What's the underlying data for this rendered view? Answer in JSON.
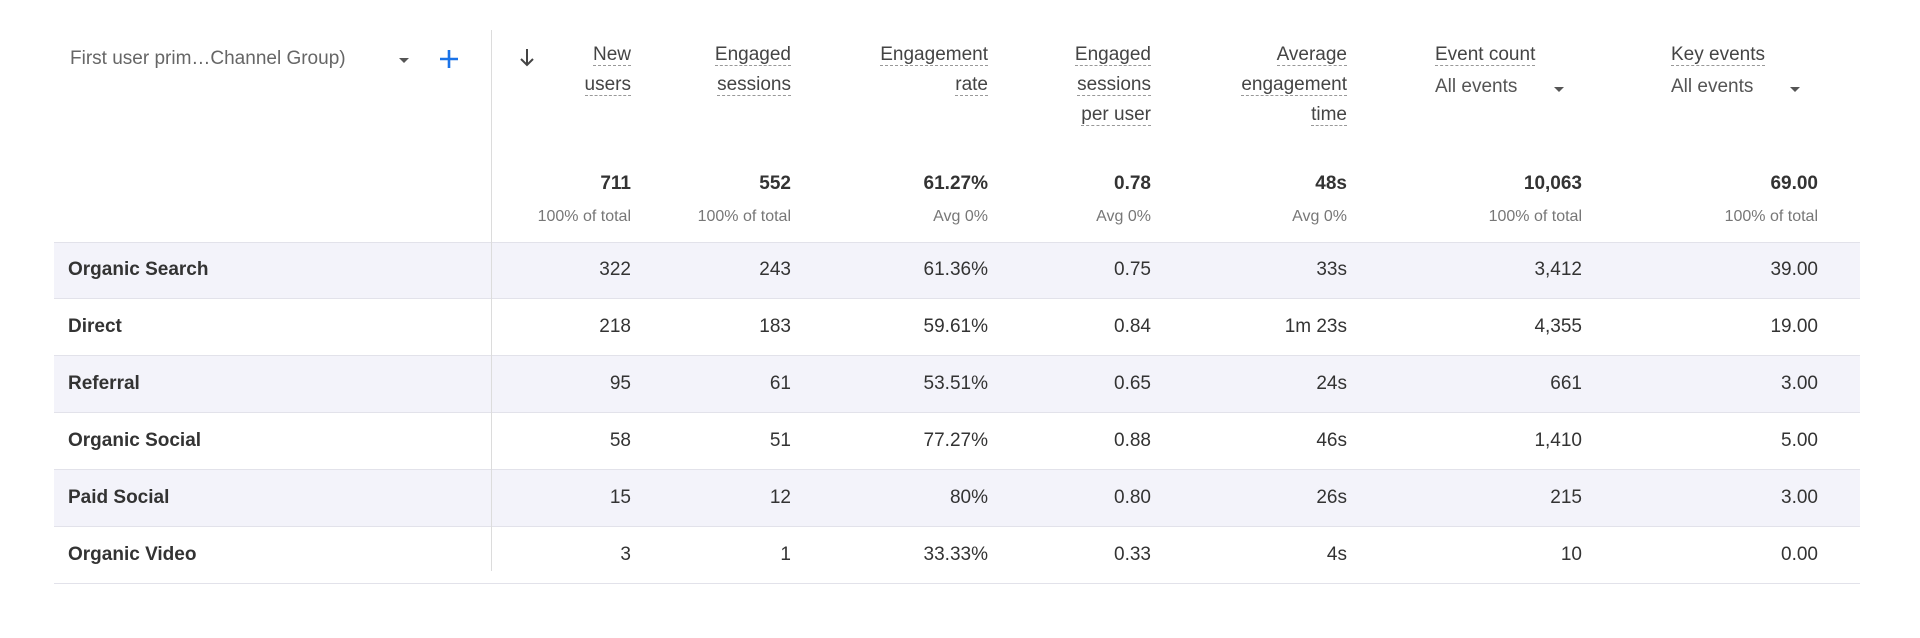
{
  "dimension": {
    "label": "First user prim…Channel Group)"
  },
  "columns": [
    {
      "label": [
        "New",
        "users"
      ],
      "total": "711",
      "total_note": "100% of total"
    },
    {
      "label": [
        "Engaged",
        "sessions"
      ],
      "total": "552",
      "total_note": "100% of total"
    },
    {
      "label": [
        "Engagement",
        "rate"
      ],
      "total": "61.27%",
      "total_note": "Avg 0%"
    },
    {
      "label": [
        "Engaged",
        "sessions",
        "per user"
      ],
      "total": "0.78",
      "total_note": "Avg 0%"
    },
    {
      "label": [
        "Average",
        "engagement",
        "time"
      ],
      "total": "48s",
      "total_note": "Avg 0%"
    },
    {
      "label": [
        "Event count"
      ],
      "filter": "All events",
      "total": "10,063",
      "total_note": "100% of total"
    },
    {
      "label": [
        "Key events"
      ],
      "filter": "All events",
      "total": "69.00",
      "total_note": "100% of total"
    }
  ],
  "rows": [
    {
      "label": "Organic Search",
      "cells": [
        "322",
        "243",
        "61.36%",
        "0.75",
        "33s",
        "3,412",
        "39.00"
      ]
    },
    {
      "label": "Direct",
      "cells": [
        "218",
        "183",
        "59.61%",
        "0.84",
        "1m 23s",
        "4,355",
        "19.00"
      ]
    },
    {
      "label": "Referral",
      "cells": [
        "95",
        "61",
        "53.51%",
        "0.65",
        "24s",
        "661",
        "3.00"
      ]
    },
    {
      "label": "Organic Social",
      "cells": [
        "58",
        "51",
        "77.27%",
        "0.88",
        "46s",
        "1,410",
        "5.00"
      ]
    },
    {
      "label": "Paid Social",
      "cells": [
        "15",
        "12",
        "80%",
        "0.80",
        "26s",
        "215",
        "3.00"
      ]
    },
    {
      "label": "Organic Video",
      "cells": [
        "3",
        "1",
        "33.33%",
        "0.33",
        "4s",
        "10",
        "0.00"
      ]
    }
  ]
}
